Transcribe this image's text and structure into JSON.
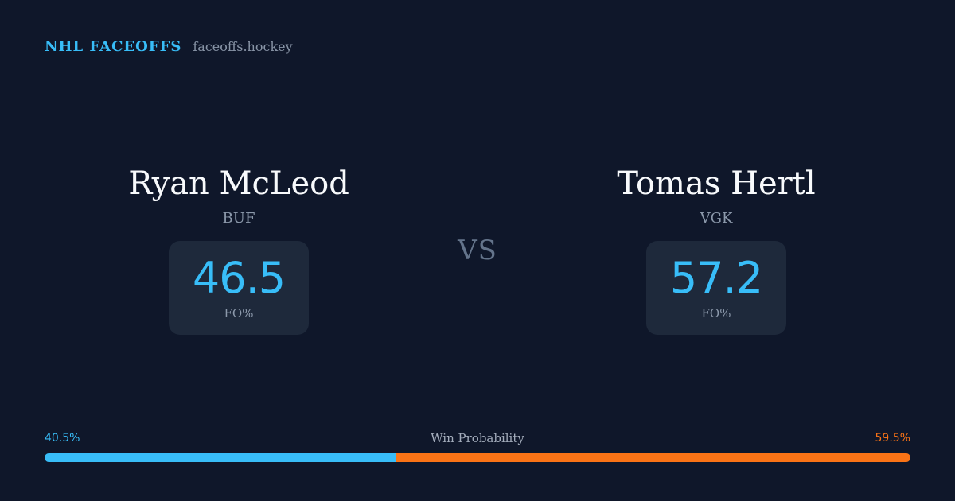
{
  "brand": {
    "name": "NHL FACEOFFS",
    "site": "faceoffs.hockey"
  },
  "players": [
    {
      "name": "Ryan McLeod",
      "team": "BUF",
      "stat_value": "46.5",
      "stat_label": "FO%"
    },
    {
      "name": "Tomas Hertl",
      "team": "VGK",
      "stat_value": "57.2",
      "stat_label": "FO%"
    }
  ],
  "vs_label": "VS",
  "win_probability": {
    "label": "Win Probability",
    "left_text": "40.5%",
    "right_text": "59.5%",
    "left_value": 40.5,
    "right_value": 59.5,
    "left_color": "#38bdf8",
    "right_color": "#f97316"
  }
}
